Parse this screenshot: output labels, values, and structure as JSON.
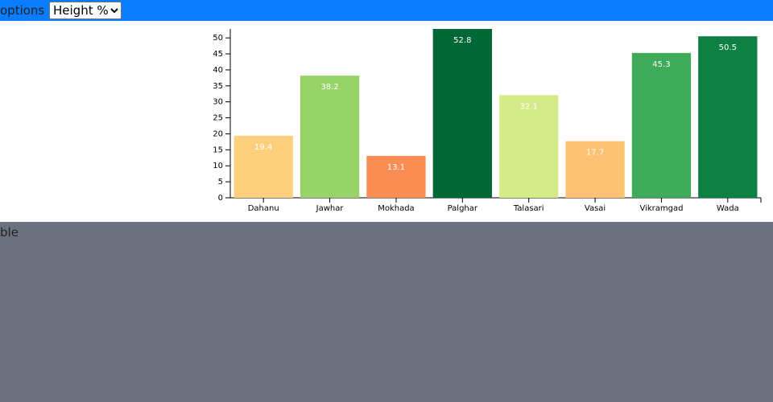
{
  "toolbar": {
    "label": "options",
    "select": "Height %"
  },
  "chart_data": {
    "type": "bar",
    "categories": [
      "Dahanu",
      "Jawhar",
      "Mokhada",
      "Palghar",
      "Talasari",
      "Vasai",
      "Vikramgad",
      "Wada"
    ],
    "values": [
      19.4,
      38.2,
      13.1,
      52.8,
      32.1,
      17.7,
      45.3,
      50.5
    ],
    "colors": [
      "#fed07e",
      "#98d36a",
      "#fa8d53",
      "#006837",
      "#d5eb8a",
      "#fdc274",
      "#3eaa5a",
      "#0f8044"
    ],
    "ylim": [
      0,
      52.8
    ],
    "yticks": [
      0,
      5,
      10,
      15,
      20,
      25,
      30,
      35,
      40,
      45,
      50
    ]
  },
  "footer": {
    "label": "ble"
  }
}
